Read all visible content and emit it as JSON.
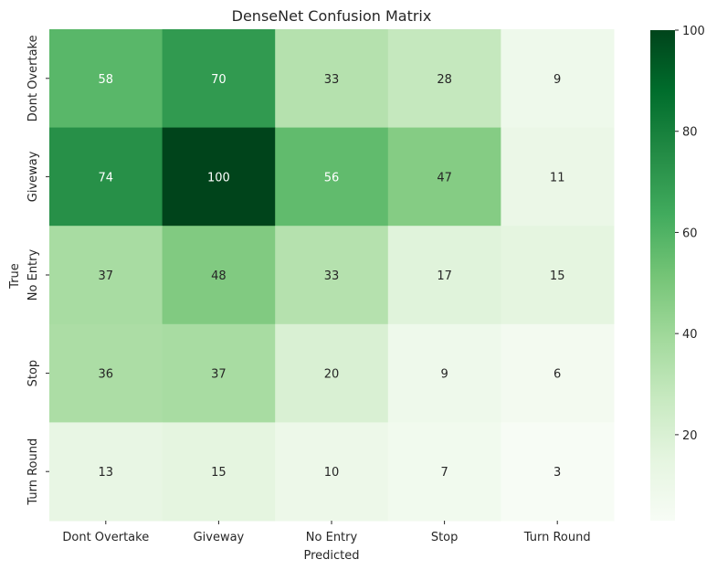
{
  "chart_data": {
    "type": "heatmap",
    "title": "DenseNet Confusion Matrix",
    "xlabel": "Predicted",
    "ylabel": "True",
    "x_categories": [
      "Dont Overtake",
      "Giveway",
      "No Entry",
      "Stop",
      "Turn Round"
    ],
    "y_categories": [
      "Dont Overtake",
      "Giveway",
      "No Entry",
      "Stop",
      "Turn Round"
    ],
    "values": [
      [
        58,
        70,
        33,
        28,
        9
      ],
      [
        74,
        100,
        56,
        47,
        11
      ],
      [
        37,
        48,
        33,
        17,
        15
      ],
      [
        36,
        37,
        20,
        9,
        6
      ],
      [
        13,
        15,
        10,
        7,
        3
      ]
    ],
    "colormap": "Greens",
    "vmin": 3,
    "vmax": 100,
    "colorbar_ticks": [
      20,
      40,
      60,
      80,
      100
    ],
    "colors": {
      "low": "#f7fcf5",
      "high": "#00441b"
    }
  }
}
